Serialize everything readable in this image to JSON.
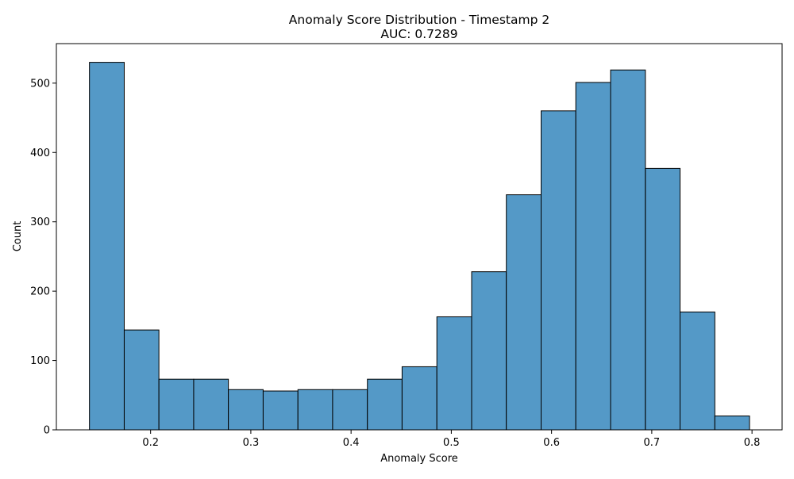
{
  "chart_data": {
    "type": "bar",
    "title": "Anomaly Score Distribution - Timestamp 2",
    "subtitle": "AUC: 0.7289",
    "xlabel": "Anomaly Score",
    "ylabel": "Count",
    "bin_edges": [
      0.139,
      0.1737,
      0.2083,
      0.243,
      0.2776,
      0.3123,
      0.347,
      0.3816,
      0.4163,
      0.4509,
      0.4856,
      0.5203,
      0.5549,
      0.5896,
      0.6242,
      0.6589,
      0.6936,
      0.7282,
      0.7629,
      0.7975
    ],
    "values": [
      530,
      144,
      73,
      73,
      58,
      56,
      58,
      58,
      73,
      91,
      163,
      228,
      339,
      460,
      501,
      519,
      377,
      170,
      20
    ],
    "xlim": [
      0.106,
      0.83
    ],
    "ylim": [
      0,
      557
    ],
    "xticks": [
      0.2,
      0.3,
      0.4,
      0.5,
      0.6,
      0.7,
      0.8
    ],
    "xtick_labels": [
      "0.2",
      "0.3",
      "0.4",
      "0.5",
      "0.6",
      "0.7",
      "0.8"
    ],
    "yticks": [
      0,
      100,
      200,
      300,
      400,
      500
    ],
    "ytick_labels": [
      "0",
      "100",
      "200",
      "300",
      "400",
      "500"
    ],
    "grid": false,
    "bar_color": "#5499c7",
    "edge_color": "#000000"
  }
}
